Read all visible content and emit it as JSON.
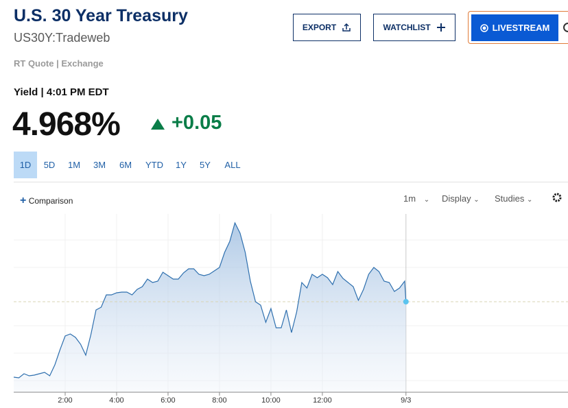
{
  "header": {
    "title": "U.S. 30 Year Treasury",
    "symbol": "US30Y:Tradeweb",
    "quote_source": "RT Quote | Exchange"
  },
  "buttons": [
    "EXPORT",
    "WATCHLIST",
    "LIVESTREAM"
  ],
  "quote": {
    "label": "Yield | 4:01 PM EDT",
    "price": "4.968%",
    "change": "+0.05"
  },
  "ranges": [
    "1D",
    "5D",
    "1M",
    "3M",
    "6M",
    "YTD",
    "1Y",
    "5Y",
    "ALL"
  ],
  "toolbar": {
    "comparison": "Comparison",
    "interval": "1m",
    "display": "Display",
    "studies": "Studies"
  },
  "chart_data": {
    "type": "area",
    "color": "#2e6fae",
    "x": [
      0,
      0.2,
      0.4,
      0.6,
      0.8,
      1,
      1.2,
      1.4,
      1.6,
      1.8,
      2,
      2.2,
      2.4,
      2.6,
      2.8,
      3,
      3.2,
      3.4,
      3.6,
      3.8,
      4,
      4.2,
      4.4,
      4.6,
      4.8,
      5,
      5.2,
      5.4,
      5.6,
      5.8,
      6,
      6.2,
      6.4,
      6.6,
      6.8,
      7,
      7.2,
      7.4,
      7.6,
      7.8,
      8,
      8.2,
      8.4,
      8.6,
      8.8,
      9,
      9.2,
      9.4,
      9.6,
      9.8,
      10,
      10.2,
      10.4,
      10.6,
      10.8,
      11,
      11.2,
      11.4,
      11.6,
      11.8,
      12,
      12.2,
      12.4,
      12.6,
      12.8,
      13,
      13.2,
      13.4,
      13.6,
      13.8,
      14,
      14.2,
      14.4,
      14.6,
      14.8,
      15,
      15.2,
      15.25
    ],
    "values": [
      4.9405,
      4.94025,
      4.94175,
      4.941,
      4.94125,
      4.94175,
      4.94225,
      4.941,
      4.945,
      4.9505,
      4.9555,
      4.95625,
      4.955,
      4.9525,
      4.9485,
      4.956,
      4.965,
      4.966,
      4.9705,
      4.9705,
      4.97125,
      4.9715,
      4.9715,
      4.9705,
      4.9725,
      4.9735,
      4.97625,
      4.975,
      4.9755,
      4.97875,
      4.9775,
      4.97625,
      4.97625,
      4.9785,
      4.98,
      4.98,
      4.978,
      4.9775,
      4.978,
      4.97925,
      4.9805,
      4.986,
      4.99,
      4.99675,
      4.993,
      4.986,
      4.9755,
      4.968,
      4.96675,
      4.9605,
      4.9655,
      4.9585,
      4.9585,
      4.965,
      4.95675,
      4.96425,
      4.975,
      4.973,
      4.978,
      4.97675,
      4.978,
      4.97675,
      4.97425,
      4.979,
      4.9765,
      4.975,
      4.9735,
      4.9685,
      4.9725,
      4.978,
      4.9805,
      4.979,
      4.9755,
      4.975,
      4.97175,
      4.973,
      4.9755,
      4.968
    ],
    "xlim": [
      0,
      21.55
    ],
    "ylim": [
      4.935,
      5.0
    ],
    "xticks": [
      {
        "value": 2,
        "label": "2:00"
      },
      {
        "value": 4,
        "label": "4:00"
      },
      {
        "value": 6,
        "label": "6:00"
      },
      {
        "value": 8,
        "label": "8:00"
      },
      {
        "value": 10,
        "label": "10:00"
      },
      {
        "value": 12,
        "label": "12:00"
      },
      {
        "value": 15.25,
        "label": "9/3"
      }
    ],
    "grid": true
  }
}
